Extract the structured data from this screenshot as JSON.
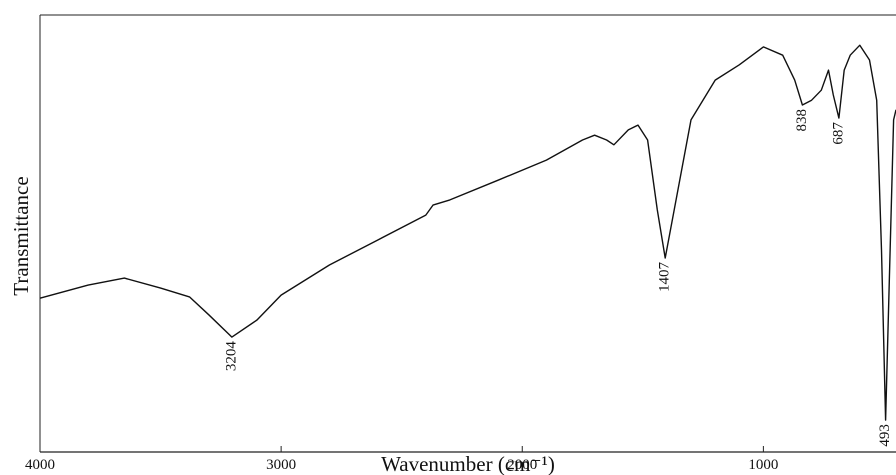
{
  "chart_data": {
    "type": "line",
    "xlabel": "Wavenumber (cm⁻¹)",
    "ylabel": "Transmittance",
    "xlim": [
      4000,
      450
    ],
    "xticks": [
      4000,
      3000,
      2000,
      1000
    ],
    "ylim": [
      0,
      100
    ],
    "x": [
      4000,
      3800,
      3650,
      3500,
      3380,
      3300,
      3204,
      3100,
      3000,
      2800,
      2600,
      2400,
      2370,
      2300,
      2100,
      1900,
      1750,
      1700,
      1650,
      1620,
      1560,
      1520,
      1480,
      1440,
      1407,
      1370,
      1300,
      1200,
      1100,
      1000,
      920,
      870,
      838,
      800,
      760,
      730,
      710,
      687,
      665,
      640,
      600,
      560,
      530,
      510,
      493,
      480,
      460,
      450
    ],
    "series": [
      {
        "color": "#111111",
        "values": [
          35.2,
          38.2,
          39.8,
          37.5,
          35.5,
          31.4,
          26.3,
          30.2,
          35.9,
          42.8,
          48.5,
          54.2,
          56.5,
          57.7,
          62.2,
          66.8,
          71.4,
          72.5,
          71.4,
          70.3,
          73.7,
          74.8,
          71.4,
          55.4,
          44.4,
          55.4,
          76.0,
          85.1,
          88.6,
          92.7,
          90.8,
          85.1,
          79.4,
          80.5,
          82.8,
          87.4,
          81.7,
          76.4,
          87.4,
          90.8,
          93.1,
          89.7,
          80.5,
          46.2,
          7.3,
          34.8,
          76.0,
          78.3
        ]
      }
    ],
    "peaks": [
      3204,
      1407,
      838,
      687,
      493
    ]
  }
}
